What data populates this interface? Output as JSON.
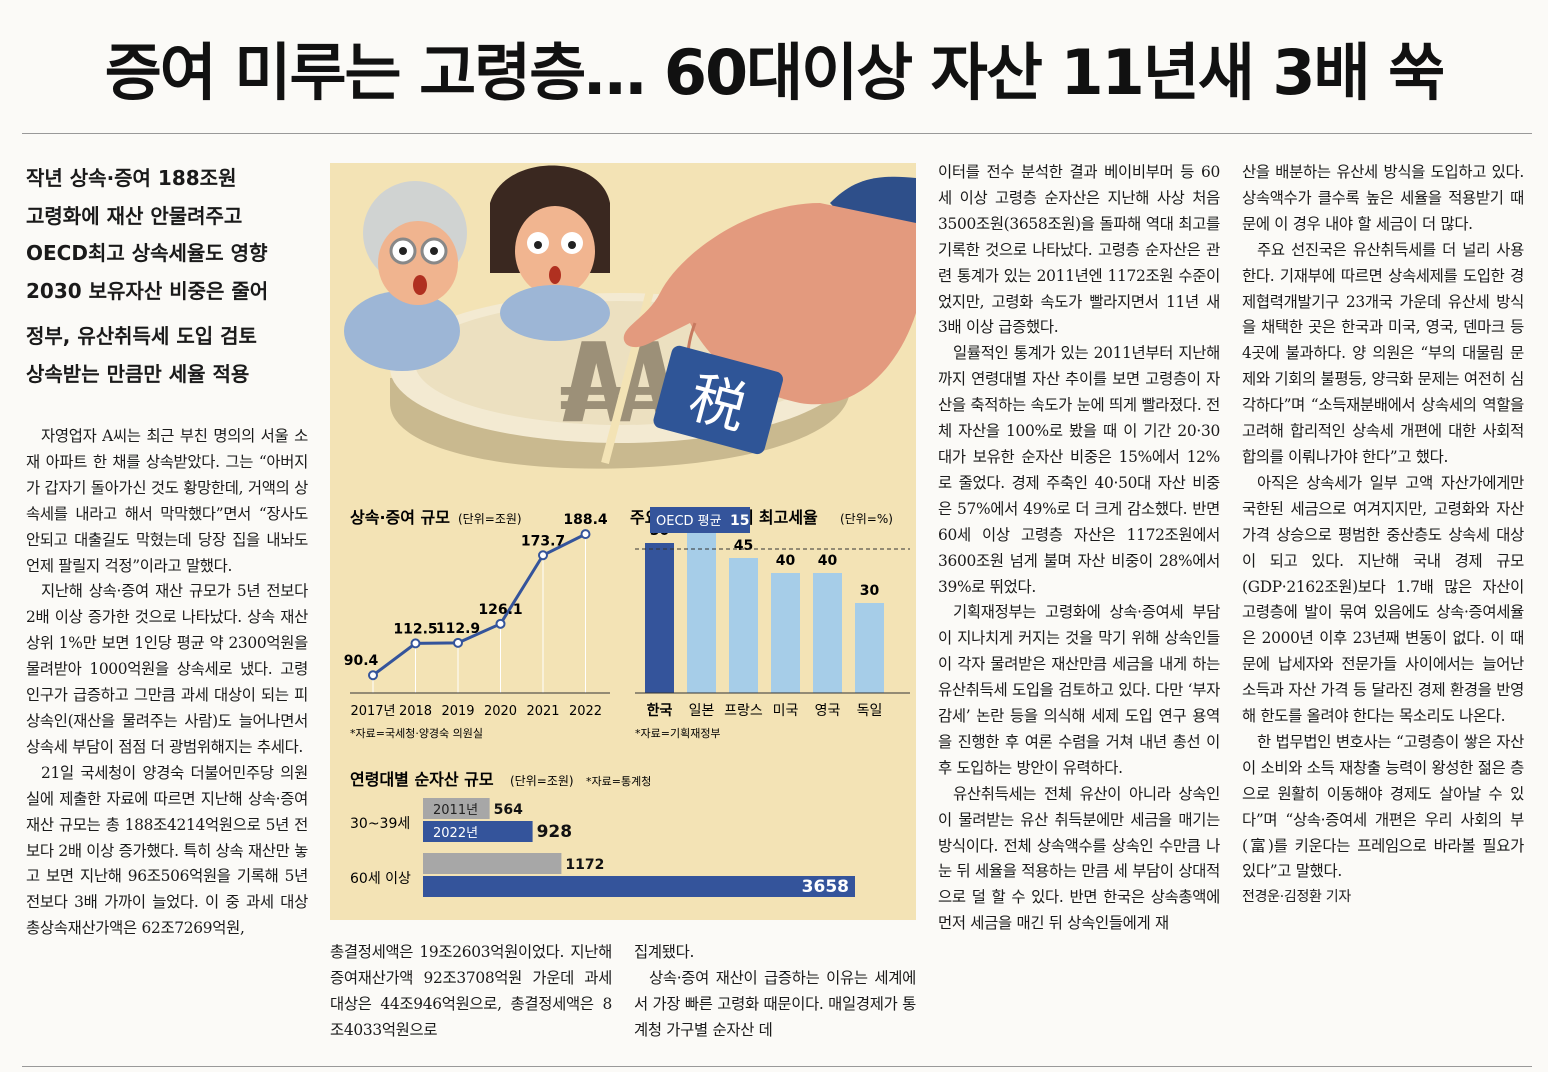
{
  "headline": "증여 미루는 고령층… 60대이상 자산 11년새 3배 쑥",
  "deck": {
    "group1": [
      "작년 상속·증여 188조원",
      "고령화에 재산 안물려주고",
      "OECD최고 상속세율도 영향",
      "2030 보유자산 비중은 줄어"
    ],
    "group2": [
      "정부, 유산취득세 도입 검토",
      "상속받는 만큼만 세율 적용"
    ]
  },
  "illustration": {
    "tax_char": "税",
    "tax_symbol": "₩"
  },
  "columns": {
    "col1": [
      "자영업자 A씨는 최근 부친 명의의 서울 소재 아파트 한 채를 상속받았다. 그는 “아버지가 갑자기 돌아가신 것도 황망한데, 거액의 상속세를 내라고 해서 막막했다”면서 “장사도 안되고 대출길도 막혔는데 당장 집을 내놔도 언제 팔릴지 걱정”이라고 말했다.",
      "지난해 상속·증여 재산 규모가 5년 전보다 2배 이상 증가한 것으로 나타났다. 상속 재산 상위 1%만 보면 1인당 평균 약 2300억원을 물려받아 1000억원을 상속세로 냈다. 고령 인구가 급증하고 그만큼 과세 대상이 되는 피상속인(재산을 물려주는 사람)도 늘어나면서 상속세 부담이 점점 더 광범위해지는 추세다.",
      "21일 국세청이 양경숙 더불어민주당 의원실에 제출한 자료에 따르면 지난해 상속·증여 재산 규모는 총 188조4214억원으로 5년 전보다 2배 이상 증가했다. 특히 상속 재산만 놓고 보면 지난해 96조506억원을 기록해 5년 전보다 3배 가까이 늘었다. 이 중 과세 대상 총상속재산가액은 62조7269억원,"
    ],
    "col2": [
      "총결정세액은 19조2603억원이었다. 지난해 증여재산가액 92조3708억원 가운데 과세 대상은 44조946억원으로, 총결정세액은 8조4033억원으로"
    ],
    "col3": [
      "집계됐다.",
      "상속·증여 재산이 급증하는 이유는 세계에서 가장 빠른 고령화 때문이다. 매일경제가 통계청 가구별 순자산 데"
    ],
    "col4": [
      "이터를 전수 분석한 결과 베이비부머 등 60세 이상 고령층 순자산은 지난해 사상 처음 3500조원(3658조원)을 돌파해 역대 최고를 기록한 것으로 나타났다. 고령층 순자산은 관련 통계가 있는 2011년엔 1172조원 수준이었지만, 고령화 속도가 빨라지면서 11년 새 3배 이상 급증했다.",
      "일률적인 통계가 있는 2011년부터 지난해까지 연령대별 자산 추이를 보면 고령층이 자산을 축적하는 속도가 눈에 띄게 빨라졌다. 전체 자산을 100%로 봤을 때 이 기간 20·30대가 보유한 순자산 비중은 15%에서 12%로 줄었다. 경제 주축인 40·50대 자산 비중은 57%에서 49%로 더 크게 감소했다. 반면 60세 이상 고령층 자산은 1172조원에서 3600조원 넘게 불며 자산 비중이 28%에서 39%로 뛰었다.",
      "기획재정부는 고령화에 상속·증여세 부담이 지나치게 커지는 것을 막기 위해 상속인들이 각자 물려받은 재산만큼 세금을 내게 하는 유산취득세 도입을 검토하고 있다. 다만 ‘부자 감세’ 논란 등을 의식해 세제 도입 연구 용역을 진행한 후 여론 수렴을 거쳐 내년 총선 이후 도입하는 방안이 유력하다.",
      "유산취득세는 전체 유산이 아니라 상속인이 물려받는 유산 취득분에만 세금을 매기는 방식이다. 전체 상속액수를 상속인 수만큼 나눈 뒤 세율을 적용하는 만큼 세 부담이 상대적으로 덜 할 수 있다. 반면 한국은 상속총액에 먼저 세금을 매긴 뒤 상속인들에게 재"
    ],
    "col5": [
      "산을 배분하는 유산세 방식을 도입하고 있다. 상속액수가 클수록 높은 세율을 적용받기 때문에 이 경우 내야 할 세금이 더 많다.",
      "주요 선진국은 유산취득세를 더 널리 사용한다. 기재부에 따르면 상속세제를 도입한 경제협력개발기구 23개국 가운데 유산세 방식을 채택한 곳은 한국과 미국, 영국, 덴마크 등 4곳에 불과하다. 양 의원은 “부의 대물림 문제와 기회의 불평등, 양극화 문제는 여전히 심각하다”며 “소득재분배에서 상속세의 역할을 고려해 합리적인 상속세 개편에 대한 사회적 합의를 이뤄나가야 한다”고 했다.",
      "아직은 상속세가 일부 고액 자산가에게만 국한된 세금으로 여겨지지만, 고령화와 자산 가격 상승으로 평범한 중산층도 상속세 대상이 되고 있다. 지난해 국내 경제 규모(GDP·2162조원)보다 1.7배 많은 자산이 고령층에 발이 묶여 있음에도 상속·증여세율은 2000년 이후 23년째 변동이 없다. 이 때문에 납세자와 전문가들 사이에서는 늘어난 소득과 자산 가격 등 달라진 경제 환경을 반영해 한도를 올려야 한다는 목소리도 나온다.",
      "한 법무법인 변호사는 “고령층이 쌓은 자산이 소비와 소득 재창출 능력이 왕성한 젊은 층으로 원활히 이동해야 경제도 살아날 수 있다”며 “상속·증여세 개편은 우리 사회의 부(富)를 키운다는 프레임으로 바라볼 필요가 있다”고 말했다."
    ],
    "byline": "전경운·김정환 기자"
  },
  "chart_data": [
    {
      "type": "line",
      "title": "상속·증여 규모",
      "unit": "(단위=조원)",
      "x": [
        "2017년",
        "2018",
        "2019",
        "2020",
        "2021",
        "2022"
      ],
      "values": [
        90.4,
        112.5,
        112.9,
        126.1,
        173.7,
        188.4
      ],
      "value_labels": [
        "90.4",
        "112.5",
        "112.9",
        "126.1",
        "173.7",
        "188.4"
      ],
      "source": "*자료=국세청·양경숙 의원실",
      "color": "#34549b"
    },
    {
      "type": "bar",
      "title": "주요국 상속증여세 최고세율",
      "unit": "(단위=%)",
      "categories": [
        "한국",
        "일본",
        "프랑스",
        "미국",
        "영국",
        "독일"
      ],
      "values": [
        50,
        55,
        45,
        40,
        40,
        30
      ],
      "value_labels": [
        "50",
        "55",
        "45",
        "40",
        "40",
        "30"
      ],
      "reference": {
        "label": "OECD 평균",
        "value": 15,
        "value_label": "15"
      },
      "source": "*자료=기획재정부",
      "colors": {
        "highlight": "#34549b",
        "other": "#a6cde8"
      }
    },
    {
      "type": "bar",
      "orientation": "horizontal",
      "title": "연령대별 순자산 규모",
      "unit": "(단위=조원)",
      "source": "*자료=통계청",
      "categories": [
        "30~39세",
        "60세 이상"
      ],
      "series": [
        {
          "name": "2011년",
          "values": [
            564,
            1172
          ],
          "value_labels": [
            "564",
            "1172"
          ],
          "color": "#a7a7a7"
        },
        {
          "name": "2022년",
          "values": [
            928,
            3658
          ],
          "value_labels": [
            "928",
            "3658"
          ],
          "color": "#34549b"
        }
      ]
    }
  ]
}
